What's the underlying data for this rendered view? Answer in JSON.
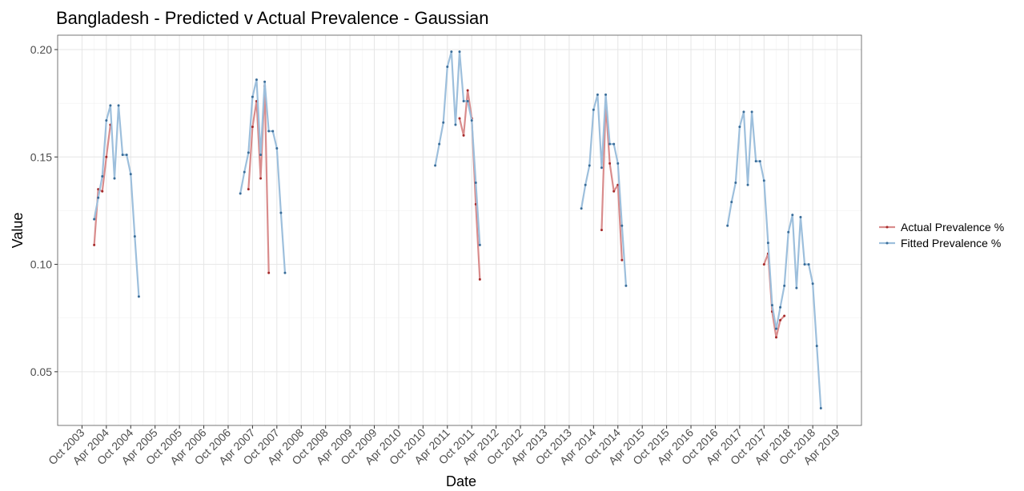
{
  "chart_data": {
    "type": "line",
    "title": "Bangladesh - Predicted v Actual Prevalence - Gaussian",
    "xlabel": "Date",
    "ylabel": "Value",
    "x": [
      "2004-01",
      "2004-02",
      "2004-03",
      "2004-04",
      "2004-05",
      "2004-06",
      "2004-07",
      "2004-08",
      "2004-09",
      "2004-10",
      "2004-11",
      "2004-12",
      "2005-01",
      "2007-01",
      "2007-02",
      "2007-03",
      "2007-04",
      "2007-05",
      "2007-06",
      "2007-07",
      "2007-08",
      "2007-09",
      "2007-10",
      "2007-11",
      "2007-12",
      "2008-01",
      "2011-01",
      "2011-02",
      "2011-03",
      "2011-04",
      "2011-05",
      "2011-06",
      "2011-07",
      "2011-08",
      "2011-09",
      "2011-10",
      "2011-11",
      "2011-12",
      "2012-01",
      "2014-01",
      "2014-02",
      "2014-03",
      "2014-04",
      "2014-05",
      "2014-06",
      "2014-07",
      "2014-08",
      "2014-09",
      "2014-10",
      "2014-11",
      "2014-12",
      "2015-01",
      "2017-01",
      "2017-02",
      "2017-03",
      "2017-04",
      "2017-05",
      "2017-06",
      "2017-07",
      "2017-08",
      "2017-09",
      "2017-10",
      "2017-11",
      "2017-12",
      "2018-01",
      "2018-02",
      "2018-03",
      "2018-04",
      "2018-05",
      "2018-06",
      "2018-07",
      "2018-08",
      "2018-09",
      "2018-10",
      "2018-11",
      "2018-12"
    ],
    "series": [
      {
        "name": "Actual Prevalence %",
        "color": "#d98c8c",
        "marker_color": "#a52a2a",
        "values": [
          0.109,
          0.135,
          0.134,
          0.15,
          0.165,
          null,
          null,
          null,
          null,
          null,
          null,
          null,
          null,
          null,
          null,
          0.135,
          0.164,
          0.176,
          0.14,
          0.183,
          0.096,
          null,
          null,
          null,
          null,
          null,
          null,
          null,
          null,
          null,
          null,
          null,
          0.168,
          0.16,
          0.181,
          0.168,
          0.128,
          0.093,
          null,
          null,
          null,
          null,
          null,
          null,
          0.116,
          0.175,
          0.147,
          0.134,
          0.137,
          0.102,
          null,
          null,
          null,
          null,
          null,
          null,
          null,
          null,
          null,
          null,
          null,
          0.1,
          0.105,
          0.078,
          0.066,
          0.074,
          0.076,
          null,
          null,
          null,
          null,
          null,
          null,
          null,
          null,
          null
        ]
      },
      {
        "name": "Fitted Prevalence %",
        "color": "#9dbfdc",
        "marker_color": "#3a6d99",
        "values": [
          0.121,
          0.131,
          0.141,
          0.167,
          0.174,
          0.14,
          0.174,
          0.151,
          0.151,
          0.142,
          0.113,
          0.085,
          null,
          0.133,
          0.143,
          0.152,
          0.178,
          0.186,
          0.151,
          0.185,
          0.162,
          0.162,
          0.154,
          0.124,
          0.096,
          null,
          0.146,
          0.156,
          0.166,
          0.192,
          0.199,
          0.165,
          0.199,
          0.176,
          0.176,
          0.167,
          0.138,
          0.109,
          null,
          0.126,
          0.137,
          0.146,
          0.172,
          0.179,
          0.145,
          0.179,
          0.156,
          0.156,
          0.147,
          0.118,
          0.09,
          null,
          0.118,
          0.129,
          0.138,
          0.164,
          0.171,
          0.137,
          0.171,
          0.148,
          0.148,
          0.139,
          0.11,
          0.081,
          0.07,
          0.08,
          0.09,
          0.115,
          0.123,
          0.089,
          0.122,
          0.1,
          0.1,
          0.091,
          0.062,
          0.033
        ]
      }
    ],
    "xlim": [
      "2003-04",
      "2019-10"
    ],
    "xticks": [
      {
        "value": "2003-10",
        "label": "Oct 2003"
      },
      {
        "value": "2004-04",
        "label": "Apr 2004"
      },
      {
        "value": "2004-10",
        "label": "Oct 2004"
      },
      {
        "value": "2005-04",
        "label": "Apr 2005"
      },
      {
        "value": "2005-10",
        "label": "Oct 2005"
      },
      {
        "value": "2006-04",
        "label": "Apr 2006"
      },
      {
        "value": "2006-10",
        "label": "Oct 2006"
      },
      {
        "value": "2007-04",
        "label": "Apr 2007"
      },
      {
        "value": "2007-10",
        "label": "Oct 2007"
      },
      {
        "value": "2008-04",
        "label": "Apr 2008"
      },
      {
        "value": "2008-10",
        "label": "Oct 2008"
      },
      {
        "value": "2009-04",
        "label": "Apr 2009"
      },
      {
        "value": "2009-10",
        "label": "Oct 2009"
      },
      {
        "value": "2010-04",
        "label": "Apr 2010"
      },
      {
        "value": "2010-10",
        "label": "Oct 2010"
      },
      {
        "value": "2011-04",
        "label": "Apr 2011"
      },
      {
        "value": "2011-10",
        "label": "Oct 2011"
      },
      {
        "value": "2012-04",
        "label": "Apr 2012"
      },
      {
        "value": "2012-10",
        "label": "Oct 2012"
      },
      {
        "value": "2013-04",
        "label": "Apr 2013"
      },
      {
        "value": "2013-10",
        "label": "Oct 2013"
      },
      {
        "value": "2014-04",
        "label": "Apr 2014"
      },
      {
        "value": "2014-10",
        "label": "Oct 2014"
      },
      {
        "value": "2015-04",
        "label": "Apr 2015"
      },
      {
        "value": "2015-10",
        "label": "Oct 2015"
      },
      {
        "value": "2016-04",
        "label": "Apr 2016"
      },
      {
        "value": "2016-10",
        "label": "Oct 2016"
      },
      {
        "value": "2017-04",
        "label": "Apr 2017"
      },
      {
        "value": "2017-10",
        "label": "Oct 2017"
      },
      {
        "value": "2018-04",
        "label": "Apr 2018"
      },
      {
        "value": "2018-10",
        "label": "Oct 2018"
      },
      {
        "value": "2019-04",
        "label": "Apr 2019"
      }
    ],
    "ylim": [
      0.025,
      0.2067
    ],
    "yticks": [
      {
        "value": 0.05,
        "label": "0.05"
      },
      {
        "value": 0.1,
        "label": "0.10"
      },
      {
        "value": 0.15,
        "label": "0.15"
      },
      {
        "value": 0.2,
        "label": "0.20"
      }
    ],
    "grid": true,
    "legend": "right"
  }
}
